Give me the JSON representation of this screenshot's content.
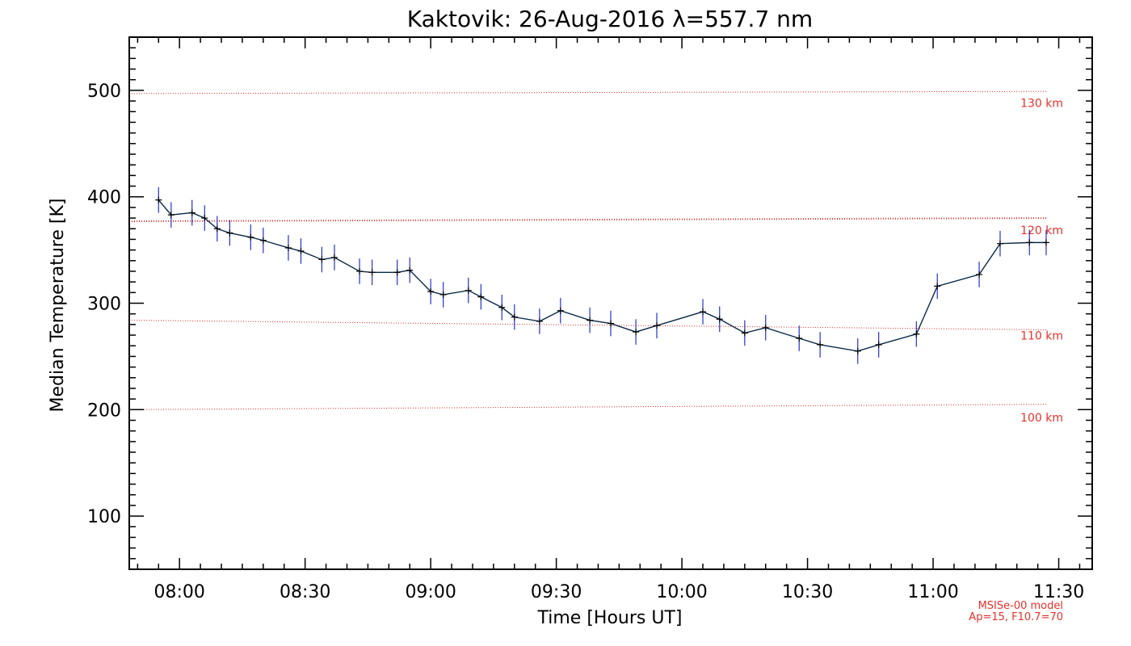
{
  "chart_data": {
    "type": "line",
    "title": "Kaktovik: 26-Aug-2016 λ=557.7 nm",
    "xlabel": "Time [Hours UT]",
    "ylabel": "Median Temperature [K]",
    "xlim": [
      "07:48",
      "11:38"
    ],
    "ylim": [
      50,
      550
    ],
    "x_ticks": [
      "08:00",
      "08:30",
      "09:00",
      "09:30",
      "10:00",
      "10:30",
      "11:00",
      "11:30"
    ],
    "y_ticks": [
      100,
      200,
      300,
      400,
      500
    ],
    "grid": false,
    "series": [
      {
        "color": "#0a2a4a",
        "error_color": "#2233cc",
        "error_bar": 12,
        "x": [
          "07:55",
          "07:58",
          "08:03",
          "08:06",
          "08:09",
          "08:12",
          "08:17",
          "08:20",
          "08:26",
          "08:29",
          "08:34",
          "08:37",
          "08:43",
          "08:46",
          "08:52",
          "08:55",
          "09:00",
          "09:03",
          "09:09",
          "09:12",
          "09:17",
          "09:20",
          "09:26",
          "09:31",
          "09:38",
          "09:43",
          "09:49",
          "09:54",
          "10:05",
          "10:09",
          "10:15",
          "10:20",
          "10:28",
          "10:33",
          "10:42",
          "10:47",
          "10:56",
          "11:01",
          "11:11",
          "11:16",
          "11:23",
          "11:27"
        ],
        "y": [
          397,
          383,
          385,
          380,
          370,
          366,
          362,
          359,
          352,
          349,
          341,
          343,
          330,
          329,
          329,
          331,
          311,
          308,
          312,
          306,
          296,
          287,
          283,
          293,
          284,
          281,
          273,
          279,
          292,
          285,
          272,
          277,
          267,
          261,
          255,
          261,
          271,
          316,
          327,
          356,
          357,
          357
        ]
      }
    ],
    "reference_lines": [
      {
        "label": "130 km",
        "color": "#e8302a",
        "start": 497,
        "end": 499
      },
      {
        "label": "120 km",
        "color": "#e8302a",
        "start": 377,
        "end": 380
      },
      {
        "label": "110 km",
        "color": "#e8302a",
        "start": 284,
        "end": 275
      },
      {
        "label": "100 km",
        "color": "#e8302a",
        "start": 200,
        "end": 205
      }
    ],
    "annotations": [
      "MSISe-00 model",
      "Ap=15, F10.7=70"
    ]
  }
}
